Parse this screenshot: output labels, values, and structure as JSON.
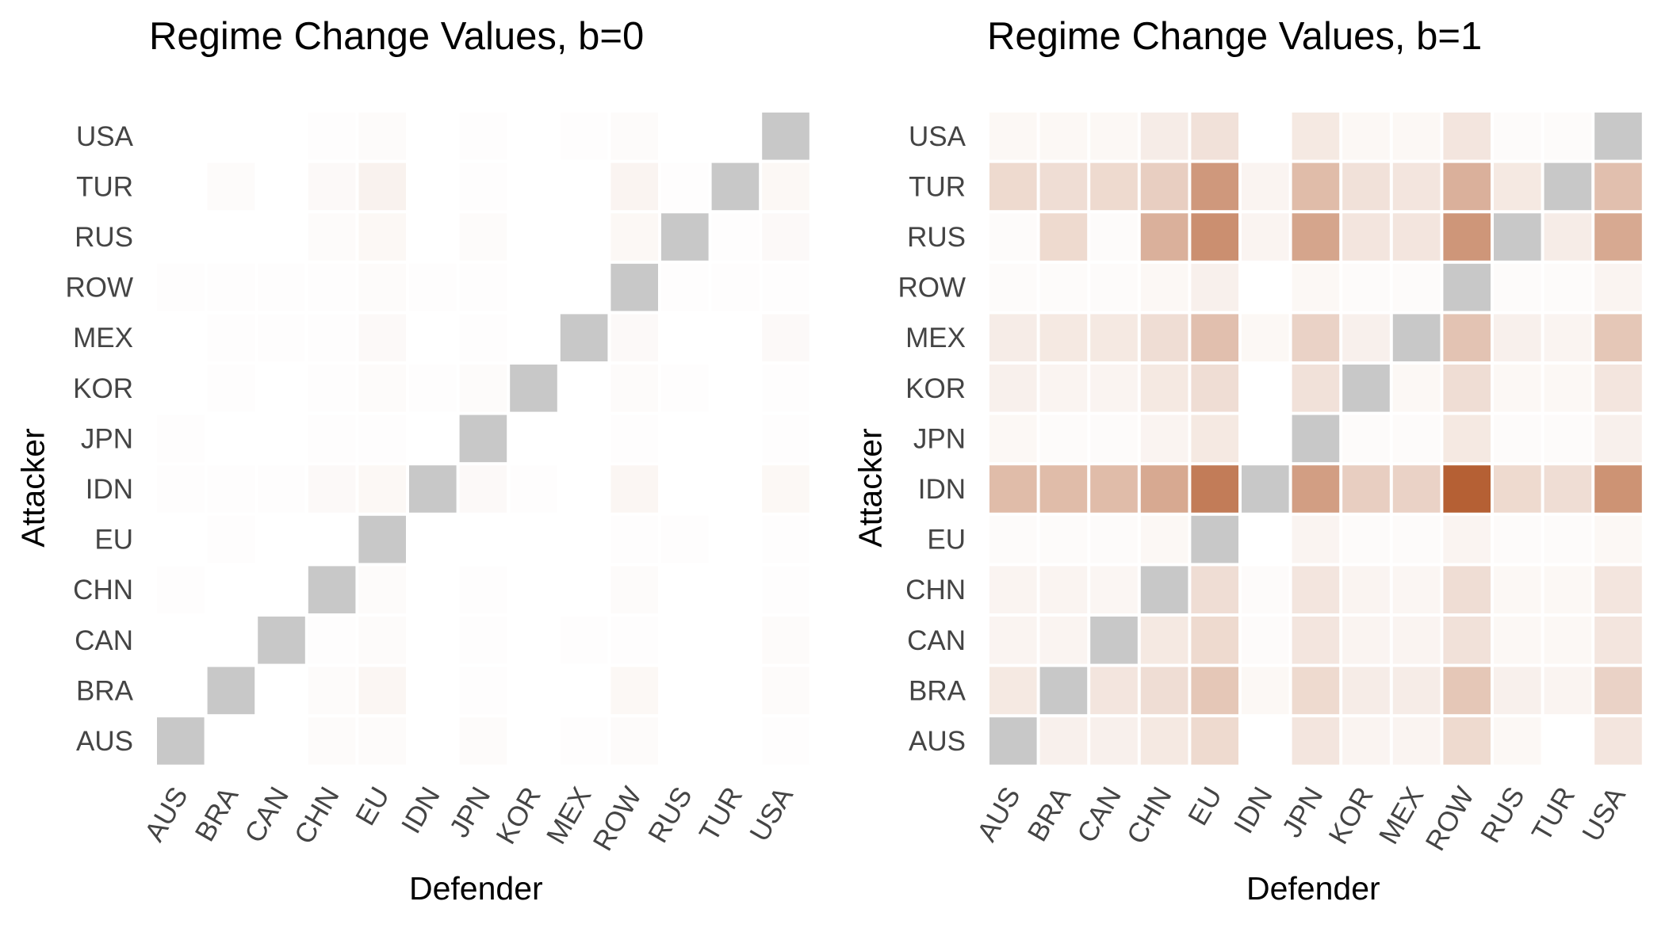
{
  "chart_data": [
    {
      "type": "heatmap",
      "title": "Regime Change Values, b=0",
      "xlabel": "Defender",
      "ylabel": "Attacker",
      "x_categories": [
        "AUS",
        "BRA",
        "CAN",
        "CHN",
        "EU",
        "IDN",
        "JPN",
        "KOR",
        "MEX",
        "ROW",
        "RUS",
        "TUR",
        "USA"
      ],
      "y_categories": [
        "AUS",
        "BRA",
        "CAN",
        "CHN",
        "EU",
        "IDN",
        "JPN",
        "KOR",
        "MEX",
        "ROW",
        "RUS",
        "TUR",
        "USA"
      ],
      "diagonal_color": "#c8c8c8",
      "values": [
        [
          null,
          0.0,
          0.0,
          0.02,
          0.02,
          0.0,
          0.02,
          0.0,
          0.01,
          0.02,
          0.0,
          0.0,
          0.01
        ],
        [
          0.0,
          null,
          0.0,
          0.02,
          0.05,
          0.0,
          0.01,
          0.0,
          0.0,
          0.04,
          0.0,
          0.0,
          0.02
        ],
        [
          0.0,
          0.0,
          null,
          0.01,
          0.02,
          0.0,
          0.01,
          0.0,
          0.01,
          0.01,
          0.0,
          0.0,
          0.02
        ],
        [
          0.01,
          0.0,
          0.0,
          null,
          0.02,
          0.0,
          0.01,
          0.0,
          0.0,
          0.02,
          0.0,
          0.0,
          0.01
        ],
        [
          0.0,
          0.01,
          0.0,
          0.0,
          null,
          0.0,
          0.0,
          0.0,
          0.0,
          0.01,
          0.01,
          0.0,
          0.01
        ],
        [
          0.01,
          0.01,
          0.01,
          0.03,
          0.04,
          null,
          0.03,
          0.01,
          0.0,
          0.05,
          0.0,
          0.0,
          0.04
        ],
        [
          0.01,
          0.0,
          0.0,
          0.01,
          0.01,
          0.0,
          null,
          0.0,
          0.0,
          0.01,
          0.0,
          0.0,
          0.01
        ],
        [
          0.0,
          0.01,
          0.0,
          0.01,
          0.02,
          0.01,
          0.02,
          null,
          0.0,
          0.02,
          0.01,
          0.0,
          0.01
        ],
        [
          0.0,
          0.01,
          0.01,
          0.01,
          0.03,
          0.0,
          0.01,
          0.0,
          null,
          0.03,
          0.0,
          0.0,
          0.03
        ],
        [
          0.01,
          0.01,
          0.01,
          0.01,
          0.02,
          0.01,
          0.01,
          0.0,
          0.0,
          null,
          0.01,
          0.01,
          0.01
        ],
        [
          0.0,
          0.0,
          0.0,
          0.02,
          0.04,
          0.0,
          0.02,
          0.0,
          0.0,
          0.04,
          null,
          0.01,
          0.03
        ],
        [
          0.0,
          0.02,
          0.0,
          0.03,
          0.07,
          0.0,
          0.01,
          0.0,
          0.0,
          0.06,
          0.01,
          null,
          0.04
        ],
        [
          0.0,
          0.0,
          0.0,
          0.01,
          0.02,
          0.0,
          0.01,
          0.0,
          0.01,
          0.02,
          0.0,
          0.0,
          null
        ]
      ]
    },
    {
      "type": "heatmap",
      "title": "Regime Change Values, b=1",
      "xlabel": "Defender",
      "ylabel": "Attacker",
      "x_categories": [
        "AUS",
        "BRA",
        "CAN",
        "CHN",
        "EU",
        "IDN",
        "JPN",
        "KOR",
        "MEX",
        "ROW",
        "RUS",
        "TUR",
        "USA"
      ],
      "y_categories": [
        "AUS",
        "BRA",
        "CAN",
        "CHN",
        "EU",
        "IDN",
        "JPN",
        "KOR",
        "MEX",
        "ROW",
        "RUS",
        "TUR",
        "USA"
      ],
      "diagonal_color": "#c8c8c8",
      "values": [
        [
          null,
          0.08,
          0.08,
          0.12,
          0.2,
          0.0,
          0.14,
          0.06,
          0.06,
          0.2,
          0.04,
          0.0,
          0.14
        ],
        [
          0.12,
          null,
          0.14,
          0.18,
          0.3,
          0.04,
          0.2,
          0.1,
          0.1,
          0.3,
          0.08,
          0.06,
          0.24
        ],
        [
          0.06,
          0.06,
          null,
          0.12,
          0.2,
          0.02,
          0.14,
          0.06,
          0.06,
          0.16,
          0.04,
          0.04,
          0.14
        ],
        [
          0.06,
          0.06,
          0.05,
          null,
          0.18,
          0.02,
          0.14,
          0.06,
          0.05,
          0.18,
          0.04,
          0.04,
          0.14
        ],
        [
          0.02,
          0.02,
          0.02,
          0.04,
          null,
          0.0,
          0.06,
          0.02,
          0.02,
          0.06,
          0.02,
          0.02,
          0.04
        ],
        [
          0.36,
          0.36,
          0.36,
          0.46,
          0.7,
          null,
          0.52,
          0.26,
          0.24,
          0.85,
          0.2,
          0.18,
          0.58
        ],
        [
          0.04,
          0.02,
          0.02,
          0.06,
          0.12,
          0.0,
          null,
          0.02,
          0.02,
          0.12,
          0.02,
          0.02,
          0.08
        ],
        [
          0.08,
          0.06,
          0.06,
          0.12,
          0.18,
          0.0,
          0.16,
          null,
          0.04,
          0.18,
          0.04,
          0.04,
          0.14
        ],
        [
          0.1,
          0.12,
          0.12,
          0.18,
          0.34,
          0.04,
          0.24,
          0.08,
          null,
          0.32,
          0.08,
          0.06,
          0.3
        ],
        [
          0.02,
          0.02,
          0.02,
          0.04,
          0.08,
          0.0,
          0.04,
          0.02,
          0.02,
          null,
          0.02,
          0.02,
          0.06
        ],
        [
          0.02,
          0.2,
          0.02,
          0.42,
          0.6,
          0.06,
          0.48,
          0.14,
          0.14,
          0.56,
          null,
          0.1,
          0.46
        ],
        [
          0.2,
          0.18,
          0.2,
          0.26,
          0.55,
          0.06,
          0.36,
          0.16,
          0.14,
          0.42,
          0.12,
          null,
          0.34
        ],
        [
          0.04,
          0.04,
          0.04,
          0.1,
          0.16,
          0.0,
          0.12,
          0.04,
          0.04,
          0.14,
          0.02,
          0.02,
          null
        ]
      ]
    }
  ]
}
